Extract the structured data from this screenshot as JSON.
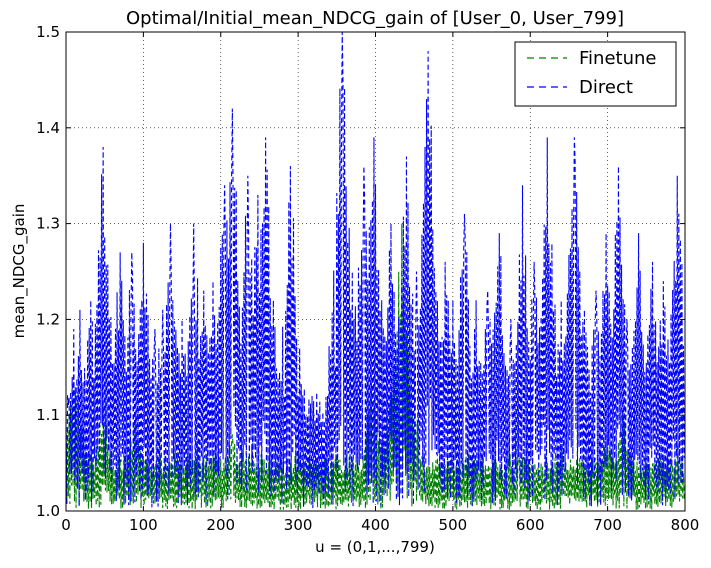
{
  "chart_data": {
    "type": "line",
    "title": "Optimal/Initial_mean_NDCG_gain of [User_0, User_799]",
    "xlabel": "u = (0,1,...,799)",
    "ylabel": "mean_NDCG_gain",
    "xlim": [
      0,
      800
    ],
    "ylim": [
      1.0,
      1.5
    ],
    "x_ticks": [
      "0",
      "100",
      "200",
      "300",
      "400",
      "500",
      "600",
      "700",
      "800"
    ],
    "y_ticks": [
      "1.0",
      "1.1",
      "1.2",
      "1.3",
      "1.4",
      "1.5"
    ],
    "grid": true,
    "legend_position": "top-right",
    "line_style": "dashed",
    "x_range": [
      0,
      799
    ],
    "series": [
      {
        "name": "Finetune",
        "color": "#008000",
        "peaks": [
          {
            "x": 10,
            "y": 1.14
          },
          {
            "x": 15,
            "y": 1.12
          },
          {
            "x": 48,
            "y": 1.11
          },
          {
            "x": 90,
            "y": 1.1
          },
          {
            "x": 170,
            "y": 1.07
          },
          {
            "x": 215,
            "y": 1.08
          },
          {
            "x": 240,
            "y": 1.07
          },
          {
            "x": 290,
            "y": 1.05
          },
          {
            "x": 300,
            "y": 1.06
          },
          {
            "x": 395,
            "y": 1.13
          },
          {
            "x": 410,
            "y": 1.08
          },
          {
            "x": 434,
            "y": 1.3
          },
          {
            "x": 455,
            "y": 1.08
          },
          {
            "x": 480,
            "y": 1.06
          },
          {
            "x": 585,
            "y": 1.06
          },
          {
            "x": 640,
            "y": 1.07
          },
          {
            "x": 700,
            "y": 1.08
          },
          {
            "x": 720,
            "y": 1.1
          },
          {
            "x": 760,
            "y": 1.05
          },
          {
            "x": 790,
            "y": 1.07
          }
        ]
      },
      {
        "name": "Direct",
        "color": "#0000ff",
        "peaks": [
          {
            "x": 3,
            "y": 1.11
          },
          {
            "x": 10,
            "y": 1.19
          },
          {
            "x": 18,
            "y": 1.21
          },
          {
            "x": 32,
            "y": 1.22
          },
          {
            "x": 48,
            "y": 1.38
          },
          {
            "x": 56,
            "y": 1.2
          },
          {
            "x": 70,
            "y": 1.27
          },
          {
            "x": 85,
            "y": 1.27
          },
          {
            "x": 100,
            "y": 1.28
          },
          {
            "x": 115,
            "y": 1.19
          },
          {
            "x": 125,
            "y": 1.21
          },
          {
            "x": 135,
            "y": 1.3
          },
          {
            "x": 150,
            "y": 1.2
          },
          {
            "x": 165,
            "y": 1.3
          },
          {
            "x": 178,
            "y": 1.23
          },
          {
            "x": 190,
            "y": 1.24
          },
          {
            "x": 205,
            "y": 1.34
          },
          {
            "x": 215,
            "y": 1.42
          },
          {
            "x": 235,
            "y": 1.35
          },
          {
            "x": 248,
            "y": 1.33
          },
          {
            "x": 258,
            "y": 1.39
          },
          {
            "x": 268,
            "y": 1.22
          },
          {
            "x": 282,
            "y": 1.12
          },
          {
            "x": 290,
            "y": 1.36
          },
          {
            "x": 300,
            "y": 1.12
          },
          {
            "x": 318,
            "y": 1.12
          },
          {
            "x": 338,
            "y": 1.12
          },
          {
            "x": 348,
            "y": 1.15
          },
          {
            "x": 357,
            "y": 1.5
          },
          {
            "x": 370,
            "y": 1.25
          },
          {
            "x": 385,
            "y": 1.36
          },
          {
            "x": 398,
            "y": 1.39
          },
          {
            "x": 408,
            "y": 1.22
          },
          {
            "x": 420,
            "y": 1.3
          },
          {
            "x": 440,
            "y": 1.37
          },
          {
            "x": 453,
            "y": 1.25
          },
          {
            "x": 468,
            "y": 1.48
          },
          {
            "x": 478,
            "y": 1.23
          },
          {
            "x": 490,
            "y": 1.26
          },
          {
            "x": 500,
            "y": 1.22
          },
          {
            "x": 515,
            "y": 1.31
          },
          {
            "x": 530,
            "y": 1.22
          },
          {
            "x": 545,
            "y": 1.23
          },
          {
            "x": 560,
            "y": 1.29
          },
          {
            "x": 575,
            "y": 1.2
          },
          {
            "x": 590,
            "y": 1.34
          },
          {
            "x": 605,
            "y": 1.26
          },
          {
            "x": 622,
            "y": 1.39
          },
          {
            "x": 640,
            "y": 1.22
          },
          {
            "x": 657,
            "y": 1.39
          },
          {
            "x": 670,
            "y": 1.21
          },
          {
            "x": 685,
            "y": 1.23
          },
          {
            "x": 698,
            "y": 1.29
          },
          {
            "x": 714,
            "y": 1.36
          },
          {
            "x": 725,
            "y": 1.2
          },
          {
            "x": 740,
            "y": 1.29
          },
          {
            "x": 758,
            "y": 1.26
          },
          {
            "x": 772,
            "y": 1.24
          },
          {
            "x": 790,
            "y": 1.35
          }
        ]
      }
    ]
  }
}
